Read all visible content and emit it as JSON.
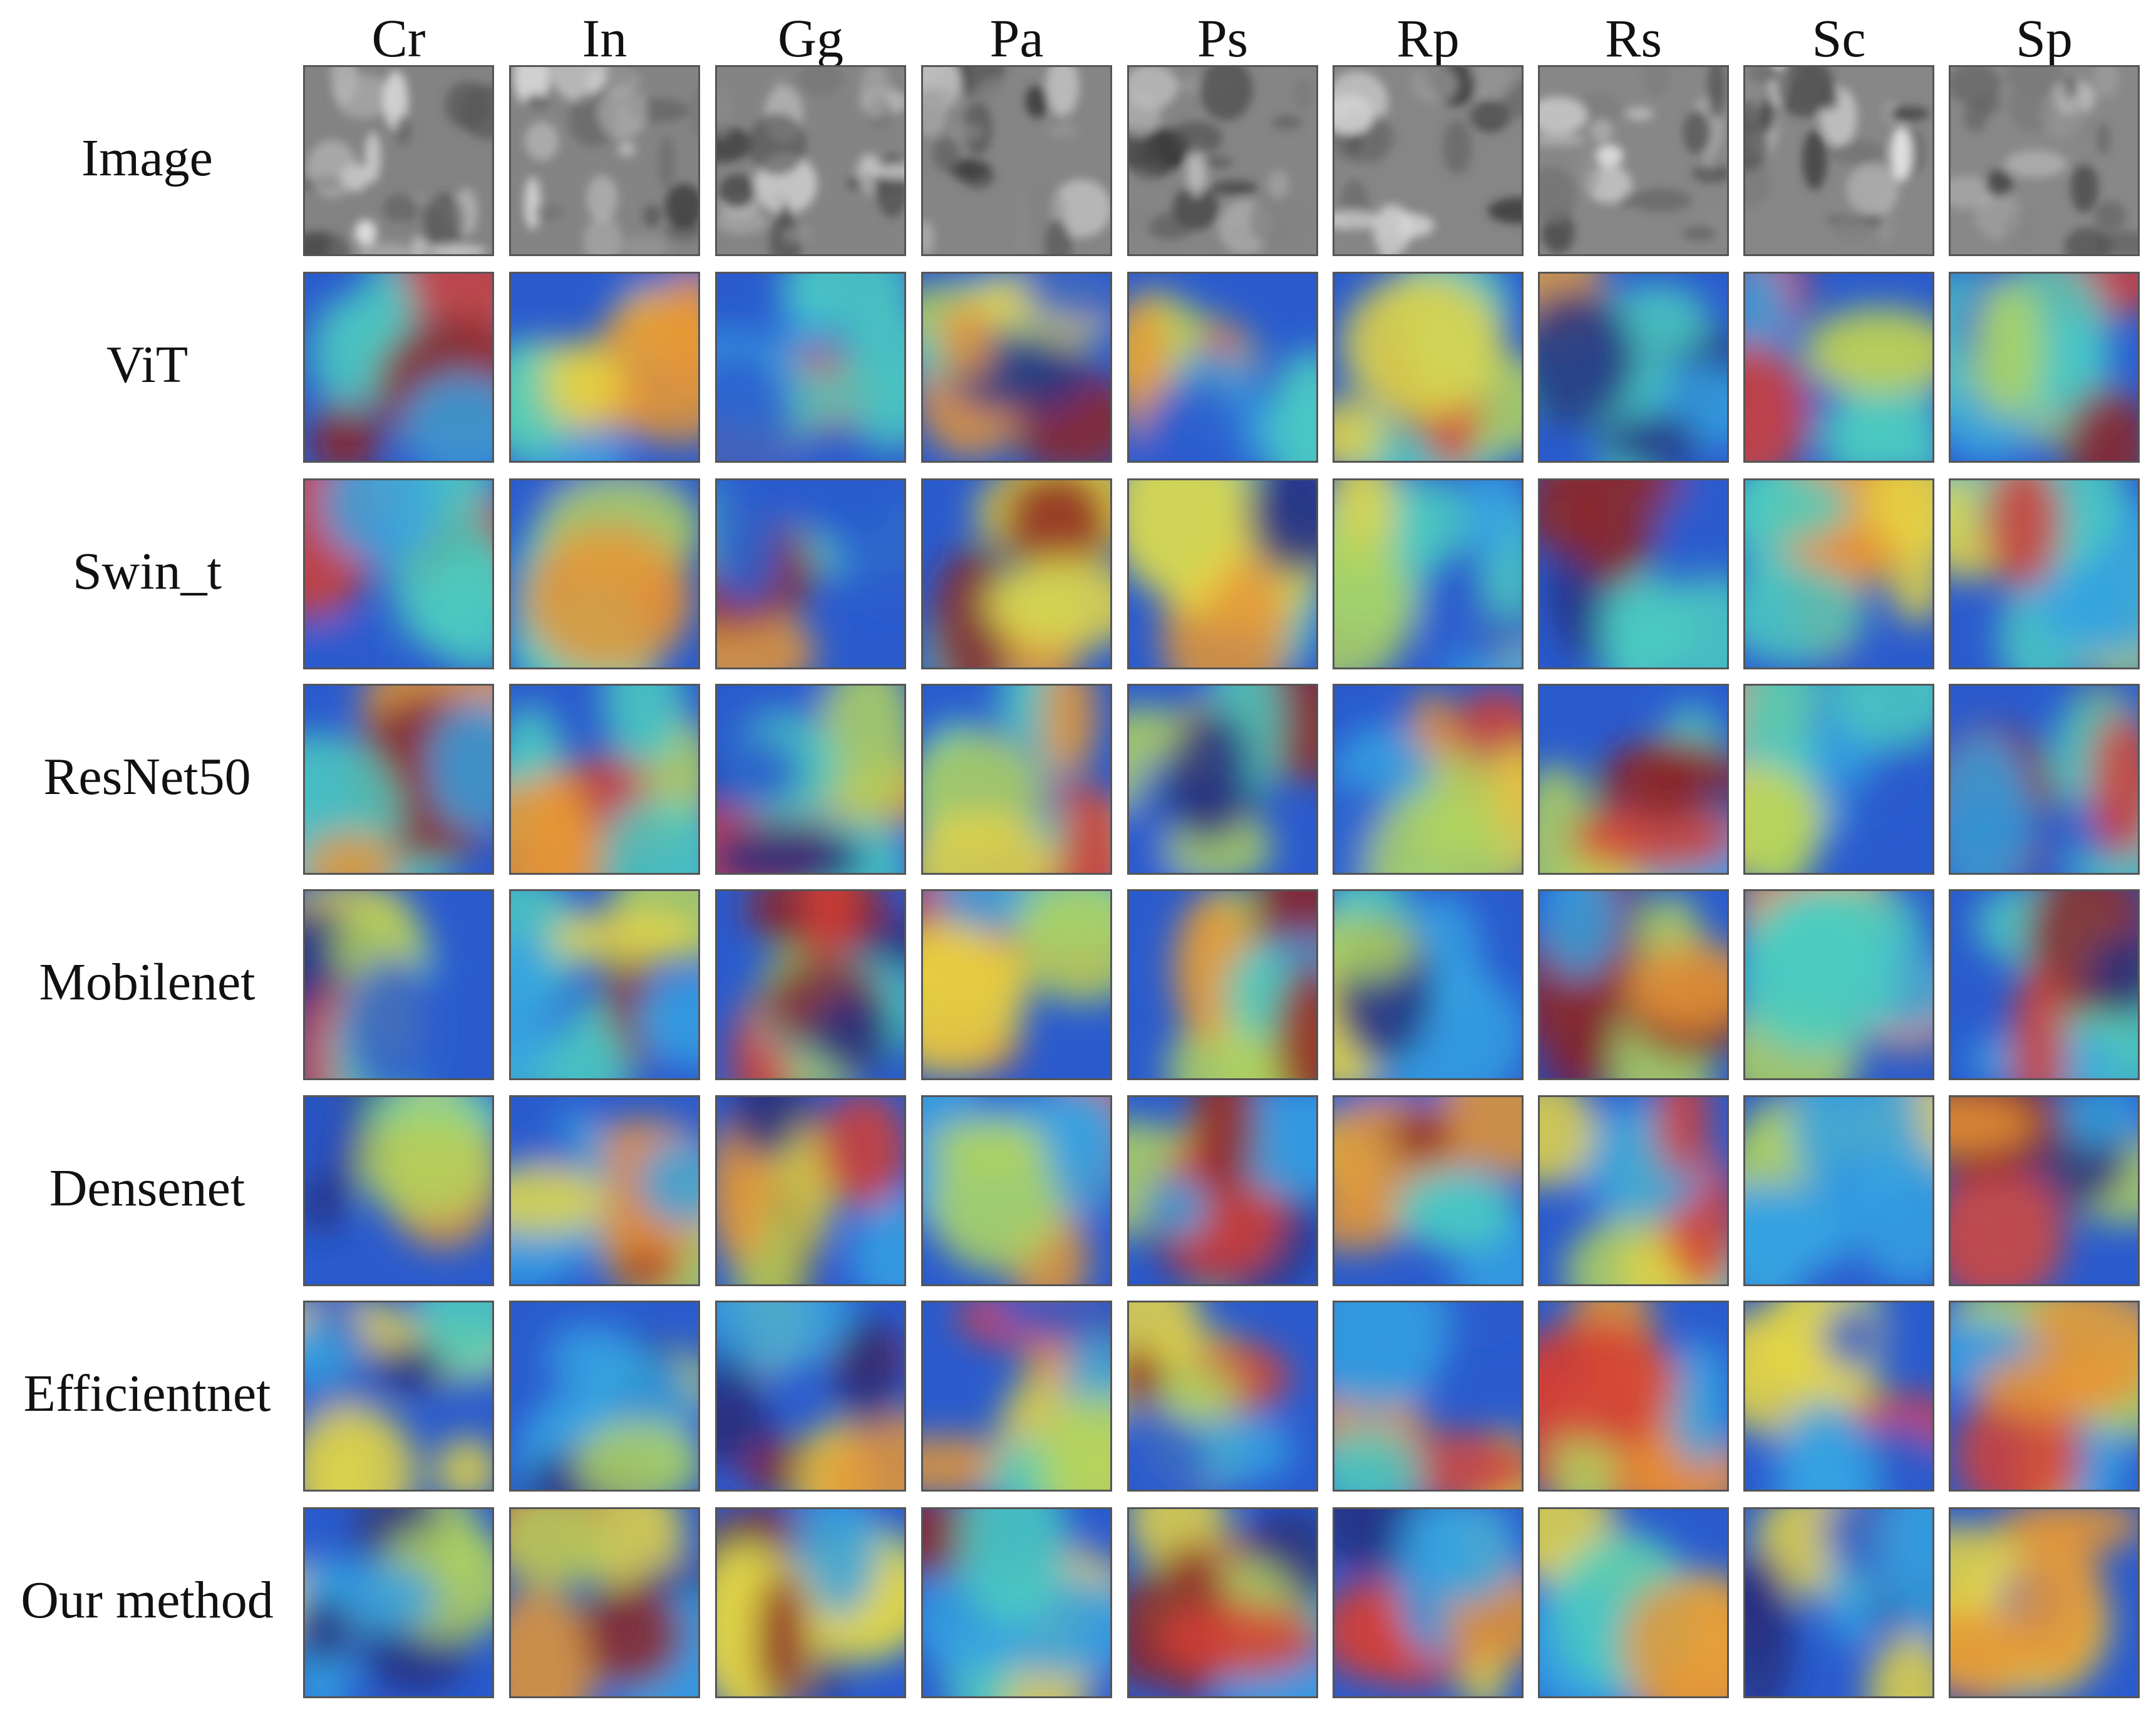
{
  "columns": [
    {
      "label": "Cr",
      "key": "cr"
    },
    {
      "label": "In",
      "key": "in"
    },
    {
      "label": "Gg",
      "key": "gg"
    },
    {
      "label": "Pa",
      "key": "pa"
    },
    {
      "label": "Ps",
      "key": "ps"
    },
    {
      "label": "Rp",
      "key": "rp"
    },
    {
      "label": "Rs",
      "key": "rs"
    },
    {
      "label": "Sc",
      "key": "sc"
    },
    {
      "label": "Sp",
      "key": "sp"
    }
  ],
  "rows": [
    {
      "label": "Image",
      "key": "image",
      "kind": "grayscale"
    },
    {
      "label": "ViT",
      "key": "vit",
      "kind": "heatmap"
    },
    {
      "label": "Swin_t",
      "key": "swin-t",
      "kind": "heatmap"
    },
    {
      "label": "ResNet50",
      "key": "resnet50",
      "kind": "heatmap"
    },
    {
      "label": "Mobilenet",
      "key": "mobilenet",
      "kind": "heatmap"
    },
    {
      "label": "Densenet",
      "key": "densenet",
      "kind": "heatmap"
    },
    {
      "label": "Efficientnet",
      "key": "efficientnet",
      "kind": "heatmap"
    },
    {
      "label": "Our method",
      "key": "our-method",
      "kind": "heatmap"
    }
  ],
  "colors": {
    "jet": [
      "#1a237e",
      "#1e56d8",
      "#2aa7f0",
      "#44d7c9",
      "#b8e05a",
      "#f4e23c",
      "#f49a2c",
      "#e0352a",
      "#8e1a1a"
    ],
    "tile_border": "#555555"
  }
}
